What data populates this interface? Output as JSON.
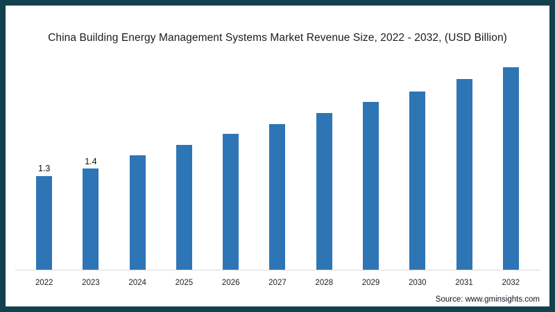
{
  "chart_data": {
    "type": "bar",
    "title": "China Building Energy Management Systems Market Revenue Size, 2022 - 2032, (USD Billion)",
    "categories": [
      "2022",
      "2023",
      "2024",
      "2025",
      "2026",
      "2027",
      "2028",
      "2029",
      "2030",
      "2031",
      "2032"
    ],
    "values": [
      1.3,
      1.4,
      1.58,
      1.72,
      1.88,
      2.01,
      2.16,
      2.31,
      2.46,
      2.63,
      2.79
    ],
    "data_labels": [
      "1.3",
      "1.4",
      "",
      "",
      "",
      "",
      "",
      "",
      "",
      "",
      ""
    ],
    "xlabel": "",
    "ylabel": "",
    "ylim": [
      0,
      3
    ],
    "grid": false,
    "legend": false,
    "bar_color": "#2e75b6",
    "axis_line_color": "#d9d9d9",
    "frame_border_color": "#12404f",
    "background_color": "#ffffff",
    "title_color": "#1a1a1a"
  },
  "source": {
    "label": "Source: www.gminsights.com"
  }
}
